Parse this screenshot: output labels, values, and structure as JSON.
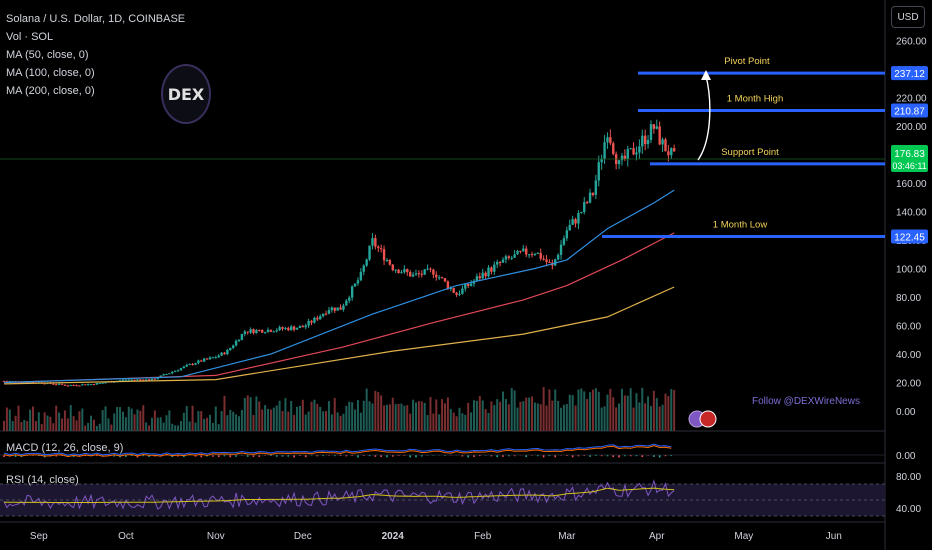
{
  "legend": {
    "title": "Solana / U.S. Dollar, 1D, COINBASE",
    "vol": "Vol · SOL",
    "ma50": "MA (50, close, 0)",
    "ma100": "MA (100, close, 0)",
    "ma200": "MA (200, close, 0)"
  },
  "logo_text": "DEX",
  "currency": "USD",
  "follow_text": "Follow @DEXWireNews",
  "macd_label": "MACD (12, 26, close, 9)",
  "rsi_label": "RSI (14, close)",
  "chart_data": {
    "type": "candlestick",
    "title": "Solana / U.S. Dollar, 1D, COINBASE",
    "y_ticks": [
      "260.00",
      "240.00",
      "220.00",
      "200.00",
      "180.00",
      "160.00",
      "140.00",
      "120.00",
      "100.00",
      "80.00",
      "60.00",
      "40.00",
      "20.00",
      "0.00"
    ],
    "x_ticks": [
      "Sep",
      "Oct",
      "Nov",
      "Dec",
      "2024",
      "Feb",
      "Mar",
      "Apr",
      "May",
      "Jun"
    ],
    "levels": [
      {
        "name": "Pivot Point",
        "value": 237.12,
        "value_label": "237.12"
      },
      {
        "name": "1 Month High",
        "value": 210.87,
        "value_label": "210.87"
      },
      {
        "name": "Support Point",
        "value": 173.38,
        "value_label": "173.38"
      },
      {
        "name": "1 Month Low",
        "value": 122.45,
        "value_label": "122.45"
      }
    ],
    "last_price": {
      "value": 176.83,
      "value_label": "176.83",
      "countdown": "03:46:11"
    },
    "price_path": [
      [
        "2023-08-20",
        21
      ],
      [
        "2023-09-01",
        20
      ],
      [
        "2023-09-11",
        18
      ],
      [
        "2023-09-20",
        19
      ],
      [
        "2023-10-01",
        22
      ],
      [
        "2023-10-10",
        22
      ],
      [
        "2023-10-20",
        30
      ],
      [
        "2023-10-25",
        34
      ],
      [
        "2023-11-01",
        38
      ],
      [
        "2023-11-05",
        42
      ],
      [
        "2023-11-11",
        56
      ],
      [
        "2023-11-20",
        57
      ],
      [
        "2023-12-01",
        59
      ],
      [
        "2023-12-05",
        64
      ],
      [
        "2023-12-10",
        72
      ],
      [
        "2023-12-14",
        72
      ],
      [
        "2023-12-21",
        95
      ],
      [
        "2023-12-25",
        119
      ],
      [
        "2024-01-01",
        101
      ],
      [
        "2024-01-08",
        95
      ],
      [
        "2024-01-15",
        98
      ],
      [
        "2024-01-23",
        82
      ],
      [
        "2024-02-01",
        96
      ],
      [
        "2024-02-08",
        105
      ],
      [
        "2024-02-15",
        111
      ],
      [
        "2024-02-19",
        112
      ],
      [
        "2024-02-25",
        101
      ],
      [
        "2024-03-01",
        127
      ],
      [
        "2024-03-05",
        137
      ],
      [
        "2024-03-10",
        153
      ],
      [
        "2024-03-15",
        198
      ],
      [
        "2024-03-19",
        172
      ],
      [
        "2024-03-25",
        185
      ],
      [
        "2024-03-31",
        199
      ],
      [
        "2024-04-03",
        187
      ],
      [
        "2024-04-07",
        177
      ]
    ],
    "ma50": [
      [
        "2023-08-20",
        20
      ],
      [
        "2023-10-20",
        24
      ],
      [
        "2023-11-20",
        40
      ],
      [
        "2023-12-25",
        68
      ],
      [
        "2024-01-23",
        88
      ],
      [
        "2024-02-19",
        100
      ],
      [
        "2024-03-01",
        106
      ],
      [
        "2024-03-15",
        128
      ],
      [
        "2024-03-31",
        146
      ],
      [
        "2024-04-07",
        155
      ]
    ],
    "ma100": [
      [
        "2023-08-20",
        20
      ],
      [
        "2023-11-01",
        25
      ],
      [
        "2023-12-15",
        45
      ],
      [
        "2024-01-15",
        62
      ],
      [
        "2024-02-15",
        78
      ],
      [
        "2024-03-01",
        88
      ],
      [
        "2024-03-20",
        106
      ],
      [
        "2024-04-07",
        125
      ]
    ],
    "ma200": [
      [
        "2023-08-20",
        19
      ],
      [
        "2023-11-01",
        22
      ],
      [
        "2024-01-01",
        42
      ],
      [
        "2024-02-15",
        54
      ],
      [
        "2024-03-15",
        66
      ],
      [
        "2024-04-07",
        87
      ]
    ],
    "volume_scale_max": 30,
    "macd_tick": "0.00",
    "rsi_ticks": [
      "80.00",
      "40.00"
    ],
    "rsi_bands": [
      70,
      30,
      50
    ]
  }
}
